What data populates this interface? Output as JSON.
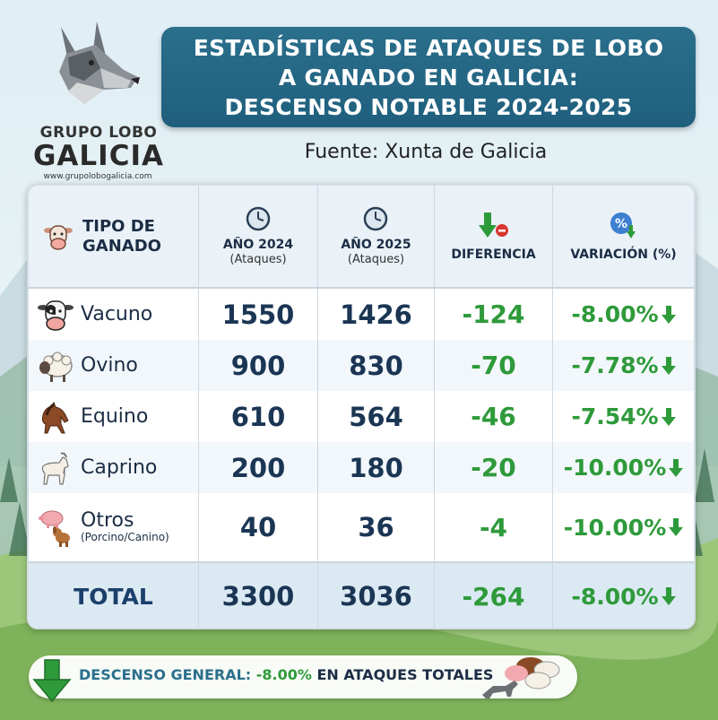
{
  "logo": {
    "line1": "GRUPO LOBO",
    "line2": "GALICIA",
    "url": "www.grupolobogalicia.com"
  },
  "title": {
    "line1": "ESTADÍSTICAS DE ATAQUES DE LOBO",
    "line2": "A GANADO EN GALICIA:",
    "line3": "DESCENSO NOTABLE 2024-2025"
  },
  "source": "Fuente: Xunta de Galicia",
  "table": {
    "headers": {
      "tipo": "TIPO DE GANADO",
      "y2024": "AÑO 2024",
      "y2024_sub": "(Ataques)",
      "y2025": "AÑO 2025",
      "y2025_sub": "(Ataques)",
      "diferencia": "DIFERENCIA",
      "variacion": "VARIACIÓN (%)"
    },
    "rows": [
      {
        "name": "Vacuno",
        "sub": "",
        "y2024": "1550",
        "y2025": "1426",
        "diff": "-124",
        "pct": "-8.00%",
        "icon": "cow-icon"
      },
      {
        "name": "Ovino",
        "sub": "",
        "y2024": "900",
        "y2025": "830",
        "diff": "-70",
        "pct": "-7.78%",
        "icon": "sheep-icon"
      },
      {
        "name": "Equino",
        "sub": "",
        "y2024": "610",
        "y2025": "564",
        "diff": "-46",
        "pct": "-7.54%",
        "icon": "horse-icon"
      },
      {
        "name": "Caprino",
        "sub": "",
        "y2024": "200",
        "y2025": "180",
        "diff": "-20",
        "pct": "-10.00%",
        "icon": "goat-icon"
      },
      {
        "name": "Otros",
        "sub": "(Porcino/Canino)",
        "y2024": "40",
        "y2025": "36",
        "diff": "-4",
        "pct": "-10.00%",
        "icon": "pig-dog-icon"
      }
    ],
    "total": {
      "label": "TOTAL",
      "y2024": "3300",
      "y2025": "3036",
      "diff": "-264",
      "pct": "-8.00%"
    }
  },
  "banner": {
    "part1": "DESCENSO GENERAL: ",
    "part2": "-8.00%",
    "part3": " EN ATAQUES TOTALES"
  },
  "colors": {
    "title_bg": "#2a6f8c",
    "green": "#2e9a3a",
    "navy": "#1b3554"
  }
}
